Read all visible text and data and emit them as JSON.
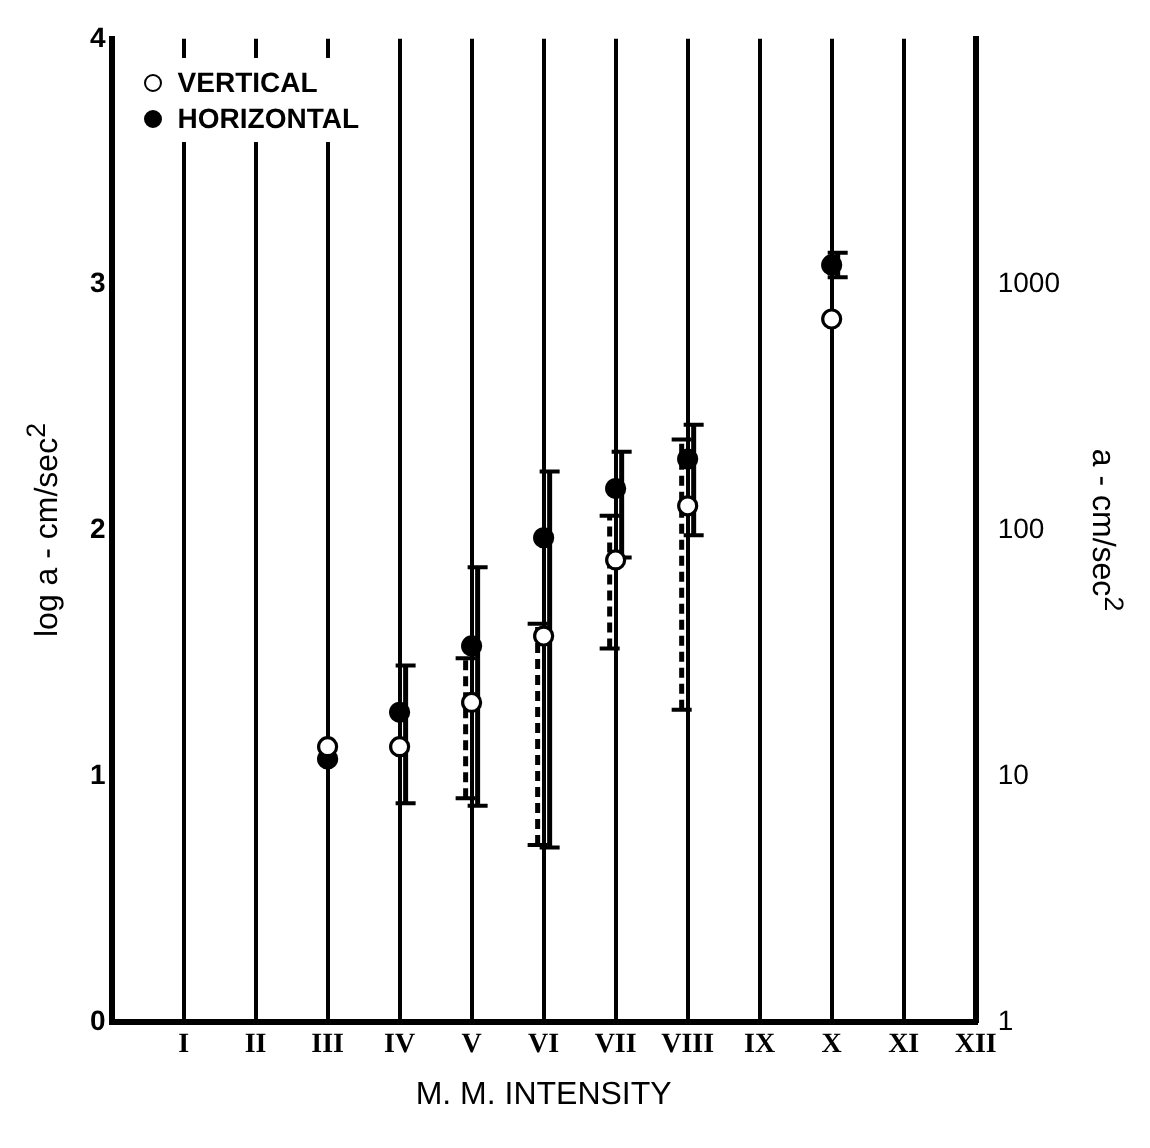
{
  "chart_data": {
    "type": "scatter",
    "xlabel": "M. M. INTENSITY",
    "ylabel": "log a - cm/sec$^{2}$",
    "y2label": "a - cm/sec$^{2}$",
    "categories": [
      "I",
      "II",
      "III",
      "IV",
      "V",
      "VI",
      "VII",
      "VIII",
      "IX",
      "X",
      "XI",
      "XII"
    ],
    "series": [
      {
        "name": "VERTICAL",
        "color": "#ffffff",
        "line_style": "dashed",
        "values": [
          null,
          null,
          1.12,
          1.12,
          1.3,
          1.57,
          1.88,
          2.1,
          null,
          2.86,
          null,
          null
        ],
        "errors": [
          null,
          null,
          null,
          null,
          [
            0.91,
            1.48
          ],
          [
            0.72,
            1.62
          ],
          [
            1.52,
            2.06
          ],
          [
            1.27,
            2.37
          ],
          null,
          null,
          null,
          null
        ]
      },
      {
        "name": "HORIZONTAL",
        "color": "#000000",
        "line_style": "solid",
        "values": [
          null,
          null,
          1.07,
          1.26,
          1.53,
          1.97,
          2.17,
          2.29,
          null,
          3.08,
          null,
          null
        ],
        "errors": [
          null,
          null,
          null,
          [
            0.89,
            1.45
          ],
          [
            0.88,
            1.85
          ],
          [
            0.71,
            2.24
          ],
          [
            1.89,
            2.32
          ],
          [
            1.98,
            2.43
          ],
          null,
          [
            3.03,
            3.13
          ],
          null,
          null
        ]
      }
    ],
    "ylim": [
      0,
      4
    ],
    "yticks": [
      0,
      1,
      2,
      3,
      4
    ],
    "y2lim": [
      1,
      10000
    ],
    "y2ticks": [
      1,
      10,
      100,
      1000
    ],
    "log": "y2",
    "grid": "x",
    "legend": "top left",
    "marker": "circle"
  }
}
